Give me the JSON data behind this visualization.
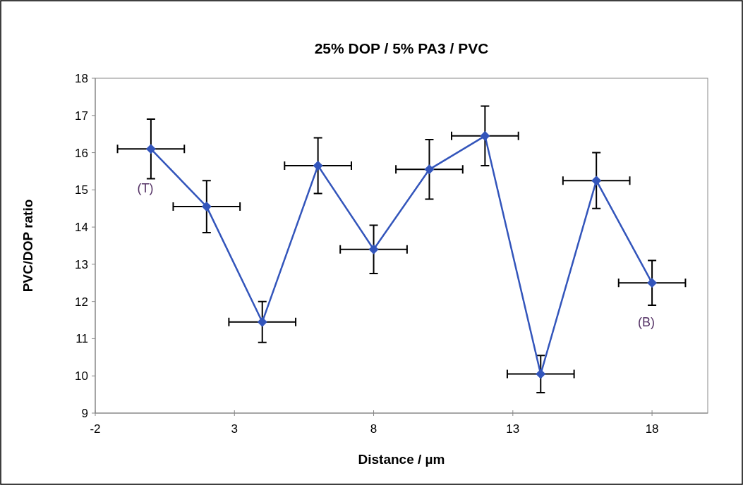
{
  "chart_data": {
    "type": "line",
    "title": "25% DOP / 5% PA3 / PVC",
    "xlabel": "Distance / µm",
    "ylabel": "PVC/DOP ratio",
    "x": [
      0,
      2,
      4,
      6,
      8,
      10,
      12,
      14,
      16,
      18
    ],
    "series": [
      {
        "color": "#3355bb",
        "values": [
          16.1,
          14.55,
          11.45,
          15.65,
          13.4,
          15.55,
          16.45,
          10.05,
          15.25,
          12.5
        ],
        "errors": [
          0.8,
          0.7,
          0.55,
          0.75,
          0.65,
          0.8,
          0.8,
          0.5,
          0.75,
          0.6
        ],
        "xerrors": [
          1.2,
          1.2,
          1.2,
          1.2,
          1.2,
          1.2,
          1.2,
          1.2,
          1.2,
          1.2
        ]
      }
    ],
    "xlim": [
      -2,
      20
    ],
    "xticks": [
      -2,
      3,
      8,
      13,
      18
    ],
    "ylim": [
      9,
      18
    ],
    "yticks": [
      9,
      10,
      11,
      12,
      13,
      14,
      15,
      16,
      17,
      18
    ],
    "marker": "diamond",
    "line_style": "solid",
    "grid": false,
    "annotations": [
      "(T)",
      "(B)"
    ]
  }
}
